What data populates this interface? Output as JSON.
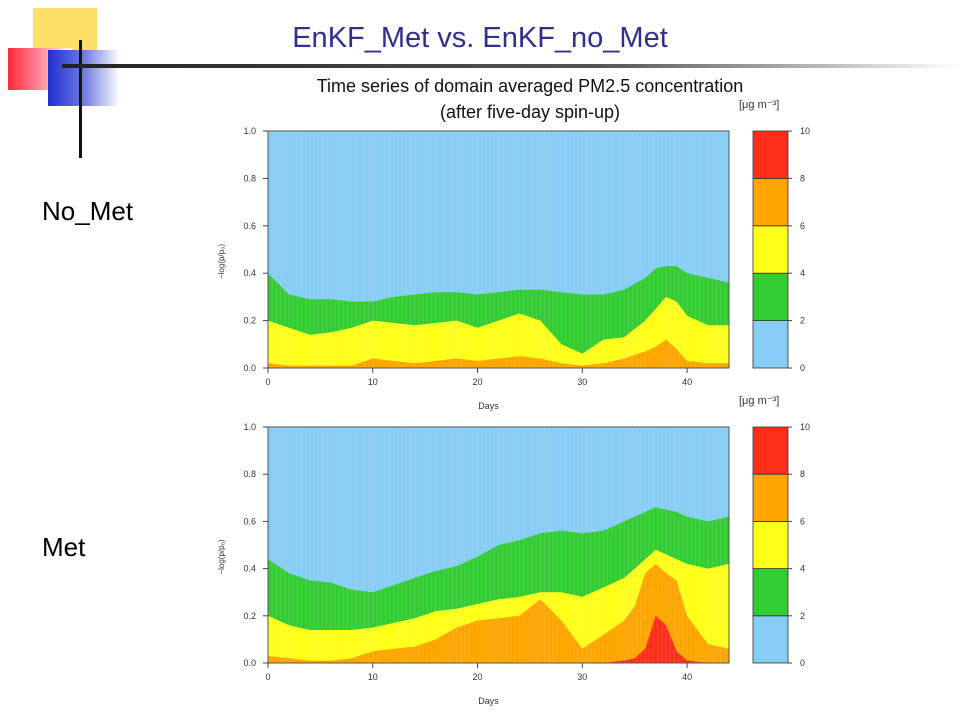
{
  "slide": {
    "title": "EnKF_Met vs. EnKF_no_Met",
    "chart_title_line1": "Time series of domain averaged PM2.5 concentration",
    "chart_title_line2": "(after five-day spin-up)",
    "row_labels": [
      "No_Met",
      "Met"
    ]
  },
  "chart_data": [
    {
      "type": "area",
      "panel_label": "No_Met",
      "xlabel": "Days",
      "ylabel": "−log(p/p₀)",
      "xlim": [
        0,
        44
      ],
      "ylim": [
        0,
        1.0
      ],
      "x_ticks": [
        0,
        10,
        20,
        30,
        40
      ],
      "y_ticks": [
        "0.0",
        "0.2",
        "0.4",
        "0.6",
        "0.8",
        "1.0"
      ],
      "colorbar": {
        "unit": "[μg m⁻³]",
        "ticks": [
          0,
          2,
          4,
          6,
          8,
          10
        ],
        "colors": [
          "#87cdf5",
          "#33cc33",
          "#ffff1a",
          "#ffa500",
          "#ff2e1a"
        ]
      },
      "x": [
        0,
        2,
        4,
        6,
        8,
        10,
        12,
        14,
        16,
        18,
        20,
        22,
        24,
        26,
        28,
        30,
        32,
        34,
        36,
        37,
        38,
        39,
        40,
        42,
        44
      ],
      "series": [
        {
          "min_conc": 2,
          "values": [
            0.4,
            0.31,
            0.29,
            0.29,
            0.28,
            0.28,
            0.3,
            0.31,
            0.32,
            0.32,
            0.31,
            0.32,
            0.33,
            0.33,
            0.32,
            0.31,
            0.31,
            0.33,
            0.38,
            0.42,
            0.43,
            0.43,
            0.4,
            0.38,
            0.36
          ]
        },
        {
          "min_conc": 4,
          "values": [
            0.2,
            0.17,
            0.14,
            0.15,
            0.17,
            0.2,
            0.19,
            0.18,
            0.19,
            0.2,
            0.17,
            0.2,
            0.23,
            0.2,
            0.1,
            0.06,
            0.12,
            0.13,
            0.2,
            0.25,
            0.3,
            0.28,
            0.22,
            0.18,
            0.18
          ]
        },
        {
          "min_conc": 6,
          "values": [
            0.02,
            0.01,
            0.01,
            0.01,
            0.01,
            0.04,
            0.03,
            0.02,
            0.03,
            0.04,
            0.03,
            0.04,
            0.05,
            0.04,
            0.02,
            0.01,
            0.02,
            0.04,
            0.07,
            0.09,
            0.12,
            0.08,
            0.03,
            0.02,
            0.02
          ]
        }
      ]
    },
    {
      "type": "area",
      "panel_label": "Met",
      "xlabel": "Days",
      "ylabel": "−log(p/p₀)",
      "xlim": [
        0,
        44
      ],
      "ylim": [
        0,
        1.0
      ],
      "x_ticks": [
        0,
        10,
        20,
        30,
        40
      ],
      "y_ticks": [
        "0.0",
        "0.2",
        "0.4",
        "0.6",
        "0.8",
        "1.0"
      ],
      "colorbar": {
        "unit": "[μg m⁻³]",
        "ticks": [
          0,
          2,
          4,
          6,
          8,
          10
        ],
        "colors": [
          "#87cdf5",
          "#33cc33",
          "#ffff1a",
          "#ffa500",
          "#ff2e1a"
        ]
      },
      "x": [
        0,
        2,
        4,
        6,
        8,
        10,
        12,
        14,
        16,
        18,
        20,
        22,
        24,
        26,
        28,
        30,
        32,
        34,
        35,
        36,
        37,
        38,
        39,
        40,
        42,
        44
      ],
      "series": [
        {
          "min_conc": 2,
          "values": [
            0.44,
            0.38,
            0.35,
            0.34,
            0.31,
            0.3,
            0.33,
            0.36,
            0.39,
            0.41,
            0.45,
            0.5,
            0.52,
            0.55,
            0.56,
            0.55,
            0.56,
            0.6,
            0.62,
            0.64,
            0.66,
            0.65,
            0.64,
            0.62,
            0.6,
            0.62
          ]
        },
        {
          "min_conc": 4,
          "values": [
            0.2,
            0.16,
            0.14,
            0.14,
            0.14,
            0.15,
            0.17,
            0.19,
            0.22,
            0.23,
            0.25,
            0.27,
            0.28,
            0.3,
            0.3,
            0.28,
            0.32,
            0.36,
            0.4,
            0.44,
            0.48,
            0.46,
            0.44,
            0.42,
            0.4,
            0.42
          ]
        },
        {
          "min_conc": 6,
          "values": [
            0.03,
            0.02,
            0.01,
            0.01,
            0.02,
            0.05,
            0.06,
            0.07,
            0.1,
            0.15,
            0.18,
            0.19,
            0.2,
            0.27,
            0.18,
            0.06,
            0.12,
            0.18,
            0.24,
            0.38,
            0.42,
            0.38,
            0.35,
            0.2,
            0.08,
            0.06
          ]
        },
        {
          "min_conc": 8,
          "values": [
            0,
            0,
            0,
            0,
            0,
            0,
            0,
            0,
            0,
            0,
            0,
            0,
            0,
            0,
            0,
            0,
            0,
            0.01,
            0.02,
            0.06,
            0.2,
            0.16,
            0.05,
            0.01,
            0,
            0
          ]
        }
      ]
    }
  ]
}
